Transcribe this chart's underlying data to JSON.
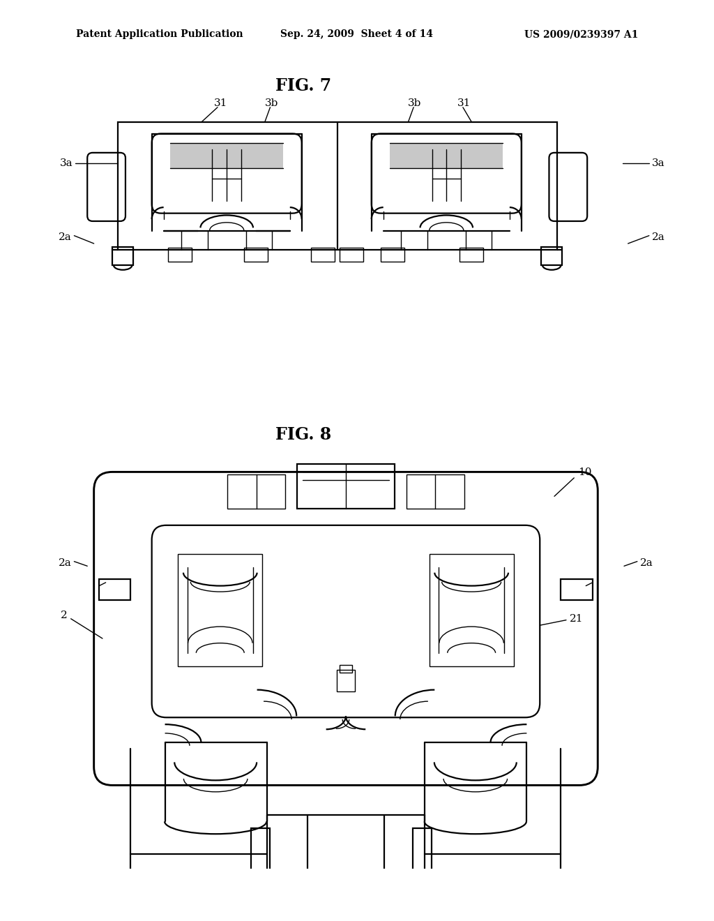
{
  "background_color": "#ffffff",
  "header_left": "Patent Application Publication",
  "header_center": "Sep. 24, 2009  Sheet 4 of 14",
  "header_right": "US 2009/0239397 A1",
  "fig7_title": "FIG. 7",
  "fig8_title": "FIG. 8",
  "lc": "#000000",
  "lw": 1.6,
  "lw2": 1.0,
  "fs": 11,
  "fs_title": 17,
  "fs_header": 10
}
